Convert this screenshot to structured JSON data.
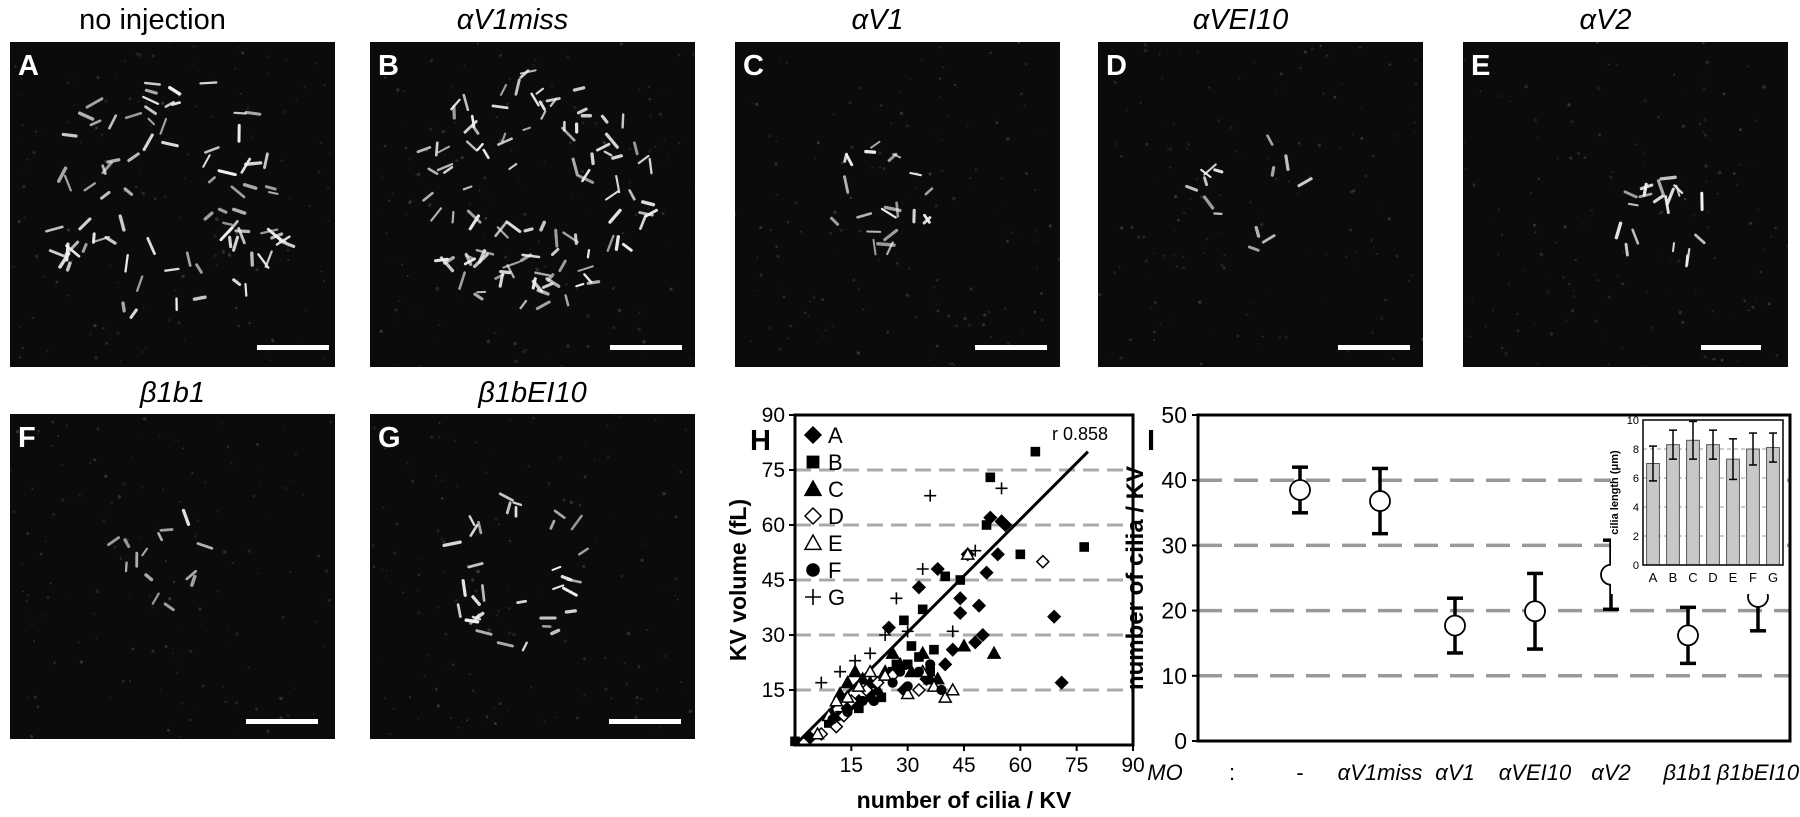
{
  "panels": [
    {
      "id": "A",
      "title": "no injection",
      "italic": false
    },
    {
      "id": "B",
      "title": "αV1miss",
      "italic": true
    },
    {
      "id": "C",
      "title": "αV1",
      "italic": true
    },
    {
      "id": "D",
      "title": "αVEI10",
      "italic": true
    },
    {
      "id": "E",
      "title": "αV2",
      "italic": true
    },
    {
      "id": "F",
      "title": "β1b1",
      "italic": true
    },
    {
      "id": "G",
      "title": "β1bEI10",
      "italic": true
    }
  ],
  "chart_data": [
    {
      "id": "H",
      "type": "scatter",
      "xlabel": "number of cilia / KV",
      "ylabel": "KV volume (fL)",
      "xlim": [
        0,
        90
      ],
      "ylim": [
        0,
        90
      ],
      "xticks": [
        "15",
        "30",
        "45",
        "60",
        "75",
        "90"
      ],
      "yticks": [
        "15",
        "30",
        "45",
        "60",
        "75",
        "90"
      ],
      "annotation": "r 0.858",
      "fit_line": [
        [
          0,
          0
        ],
        [
          78,
          80
        ]
      ],
      "grid": "dashed horizontal",
      "legend_position": "top-left",
      "series": [
        {
          "name": "A",
          "marker": "diamond-filled",
          "points": [
            [
              4,
              2
            ],
            [
              10,
              7
            ],
            [
              14,
              10
            ],
            [
              17,
              12
            ],
            [
              20,
              14
            ],
            [
              25,
              32
            ],
            [
              29,
              15
            ],
            [
              33,
              43
            ],
            [
              35,
              18
            ],
            [
              38,
              48
            ],
            [
              40,
              22
            ],
            [
              42,
              26
            ],
            [
              44,
              36
            ],
            [
              44,
              40
            ],
            [
              46,
              52
            ],
            [
              48,
              28
            ],
            [
              49,
              38
            ],
            [
              50,
              30
            ],
            [
              51,
              47
            ],
            [
              52,
              62
            ],
            [
              54,
              52
            ],
            [
              55,
              61
            ],
            [
              56,
              60
            ],
            [
              69,
              35
            ],
            [
              71,
              17
            ]
          ]
        },
        {
          "name": "B",
          "marker": "square-filled",
          "points": [
            [
              0,
              1
            ],
            [
              9,
              6
            ],
            [
              12,
              8
            ],
            [
              15,
              11
            ],
            [
              17,
              10
            ],
            [
              20,
              13
            ],
            [
              23,
              13
            ],
            [
              26,
              20
            ],
            [
              27,
              22
            ],
            [
              29,
              34
            ],
            [
              30,
              22
            ],
            [
              31,
              27
            ],
            [
              33,
              24
            ],
            [
              34,
              37
            ],
            [
              36,
              20
            ],
            [
              37,
              26
            ],
            [
              40,
              46
            ],
            [
              44,
              45
            ],
            [
              51,
              60
            ],
            [
              52,
              73
            ],
            [
              60,
              52
            ],
            [
              64,
              80
            ],
            [
              77,
              54
            ]
          ]
        },
        {
          "name": "C",
          "marker": "triangle-filled",
          "points": [
            [
              10,
              8
            ],
            [
              12,
              14
            ],
            [
              14,
              17
            ],
            [
              16,
              20
            ],
            [
              18,
              18
            ],
            [
              20,
              17
            ],
            [
              22,
              15
            ],
            [
              24,
              20
            ],
            [
              26,
              25
            ],
            [
              28,
              22
            ],
            [
              31,
              20
            ],
            [
              34,
              25
            ],
            [
              36,
              18
            ],
            [
              38,
              18
            ],
            [
              45,
              27
            ],
            [
              53,
              25
            ]
          ]
        },
        {
          "name": "D",
          "marker": "diamond-open",
          "points": [
            [
              7,
              3
            ],
            [
              11,
              5
            ],
            [
              13,
              8
            ],
            [
              15,
              12
            ],
            [
              19,
              15
            ],
            [
              22,
              17
            ],
            [
              26,
              19
            ],
            [
              33,
              15
            ],
            [
              66,
              50
            ]
          ]
        },
        {
          "name": "E",
          "marker": "triangle-open",
          "points": [
            [
              6,
              3
            ],
            [
              9,
              8
            ],
            [
              11,
              12
            ],
            [
              14,
              13
            ],
            [
              17,
              16
            ],
            [
              20,
              20
            ],
            [
              24,
              19
            ],
            [
              30,
              14
            ],
            [
              34,
              20
            ],
            [
              37,
              16
            ],
            [
              40,
              13
            ],
            [
              42,
              15
            ],
            [
              46,
              52
            ]
          ]
        },
        {
          "name": "F",
          "marker": "circle-filled",
          "points": [
            [
              10,
              7
            ],
            [
              14,
              9
            ],
            [
              18,
              12
            ],
            [
              21,
              12
            ],
            [
              26,
              17
            ],
            [
              28,
              20
            ],
            [
              30,
              16
            ],
            [
              33,
              20
            ],
            [
              36,
              22
            ],
            [
              39,
              15
            ]
          ]
        },
        {
          "name": "G",
          "marker": "plus",
          "points": [
            [
              7,
              17
            ],
            [
              12,
              20
            ],
            [
              16,
              23
            ],
            [
              20,
              25
            ],
            [
              24,
              30
            ],
            [
              27,
              40
            ],
            [
              30,
              31
            ],
            [
              34,
              48
            ],
            [
              36,
              68
            ],
            [
              42,
              31
            ],
            [
              48,
              53
            ],
            [
              55,
              70
            ]
          ]
        }
      ]
    },
    {
      "id": "I",
      "type": "errorbar",
      "ylabel": "number of cilia / KV",
      "ylim": [
        0,
        50
      ],
      "yticks": [
        "0",
        "10",
        "20",
        "30",
        "40",
        "50"
      ],
      "xlabel_prefix": "MO",
      "xlabel_sep": ":",
      "grid": "dashed horizontal",
      "categories": [
        "-",
        "αV1miss",
        "αV1",
        "αVEI10",
        "αV2",
        "β1b1",
        "β1bEI10"
      ],
      "values": [
        38.5,
        36.8,
        17.7,
        19.9,
        25.5,
        16.2,
        22.1
      ],
      "errors": [
        3.5,
        5.0,
        4.2,
        5.8,
        5.3,
        4.3,
        5.2
      ],
      "inset": {
        "type": "bar",
        "ylabel": "cilia length (μm)",
        "ylim": [
          0,
          10
        ],
        "yticks": [
          "0",
          "2",
          "4",
          "6",
          "8",
          "10"
        ],
        "categories": [
          "A",
          "B",
          "C",
          "D",
          "E",
          "F",
          "G"
        ],
        "values": [
          7.0,
          8.3,
          8.6,
          8.3,
          7.3,
          8.0,
          8.1
        ],
        "errors": [
          1.2,
          1.0,
          1.3,
          1.0,
          1.4,
          1.1,
          1.0
        ]
      }
    }
  ],
  "colors": {
    "image_bg": "#0b0b0b",
    "fluor": "#f2f2f2",
    "grid": "#aaaaaa",
    "inset_bar": "#c8c8c8"
  }
}
